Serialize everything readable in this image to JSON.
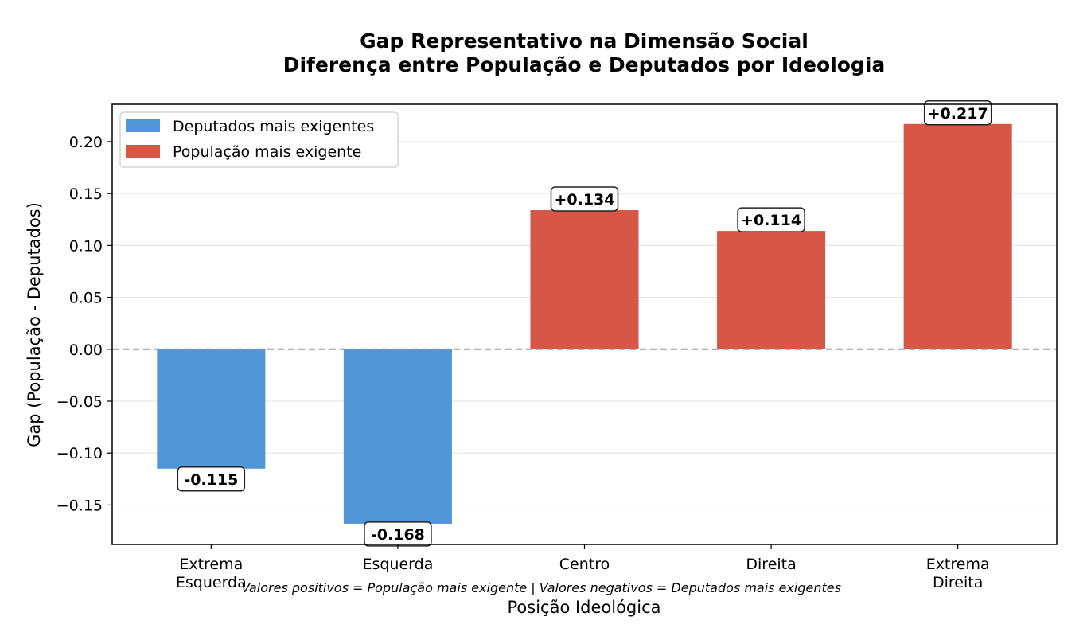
{
  "chart_data": {
    "type": "bar",
    "title": "Gap Representativo na Dimensão Social",
    "subtitle": "Diferença entre População e Deputados por Ideologia",
    "xlabel": "Posição Ideológica",
    "ylabel": "Gap (População - Deputados)",
    "categories": [
      "Extrema\nEsquerda",
      "Esquerda",
      "Centro",
      "Direita",
      "Extrema\nDireita"
    ],
    "values": [
      -0.115,
      -0.168,
      0.134,
      0.114,
      0.217
    ],
    "data_labels": [
      "-0.115",
      "-0.168",
      "+0.134",
      "+0.114",
      "+0.217"
    ],
    "ylim": [
      -0.188,
      0.236
    ],
    "yticks": [
      -0.15,
      -0.1,
      -0.05,
      0.0,
      0.05,
      0.1,
      0.15,
      0.2
    ],
    "ytick_labels": [
      "−0.15",
      "−0.10",
      "−0.05",
      "0.00",
      "0.05",
      "0.10",
      "0.15",
      "0.20"
    ],
    "grid": "horizontal",
    "reference_line": 0,
    "legend": {
      "placement": "top-left",
      "entries": [
        {
          "label": "Deputados mais exigentes",
          "color": "#5196d6"
        },
        {
          "label": "População mais exigente",
          "color": "#d75747"
        }
      ]
    },
    "colors": {
      "negative": "#5196d6",
      "positive": "#d75747"
    },
    "footnote": "Valores positivos = População mais exigente | Valores negativos = Deputados mais exigentes"
  }
}
